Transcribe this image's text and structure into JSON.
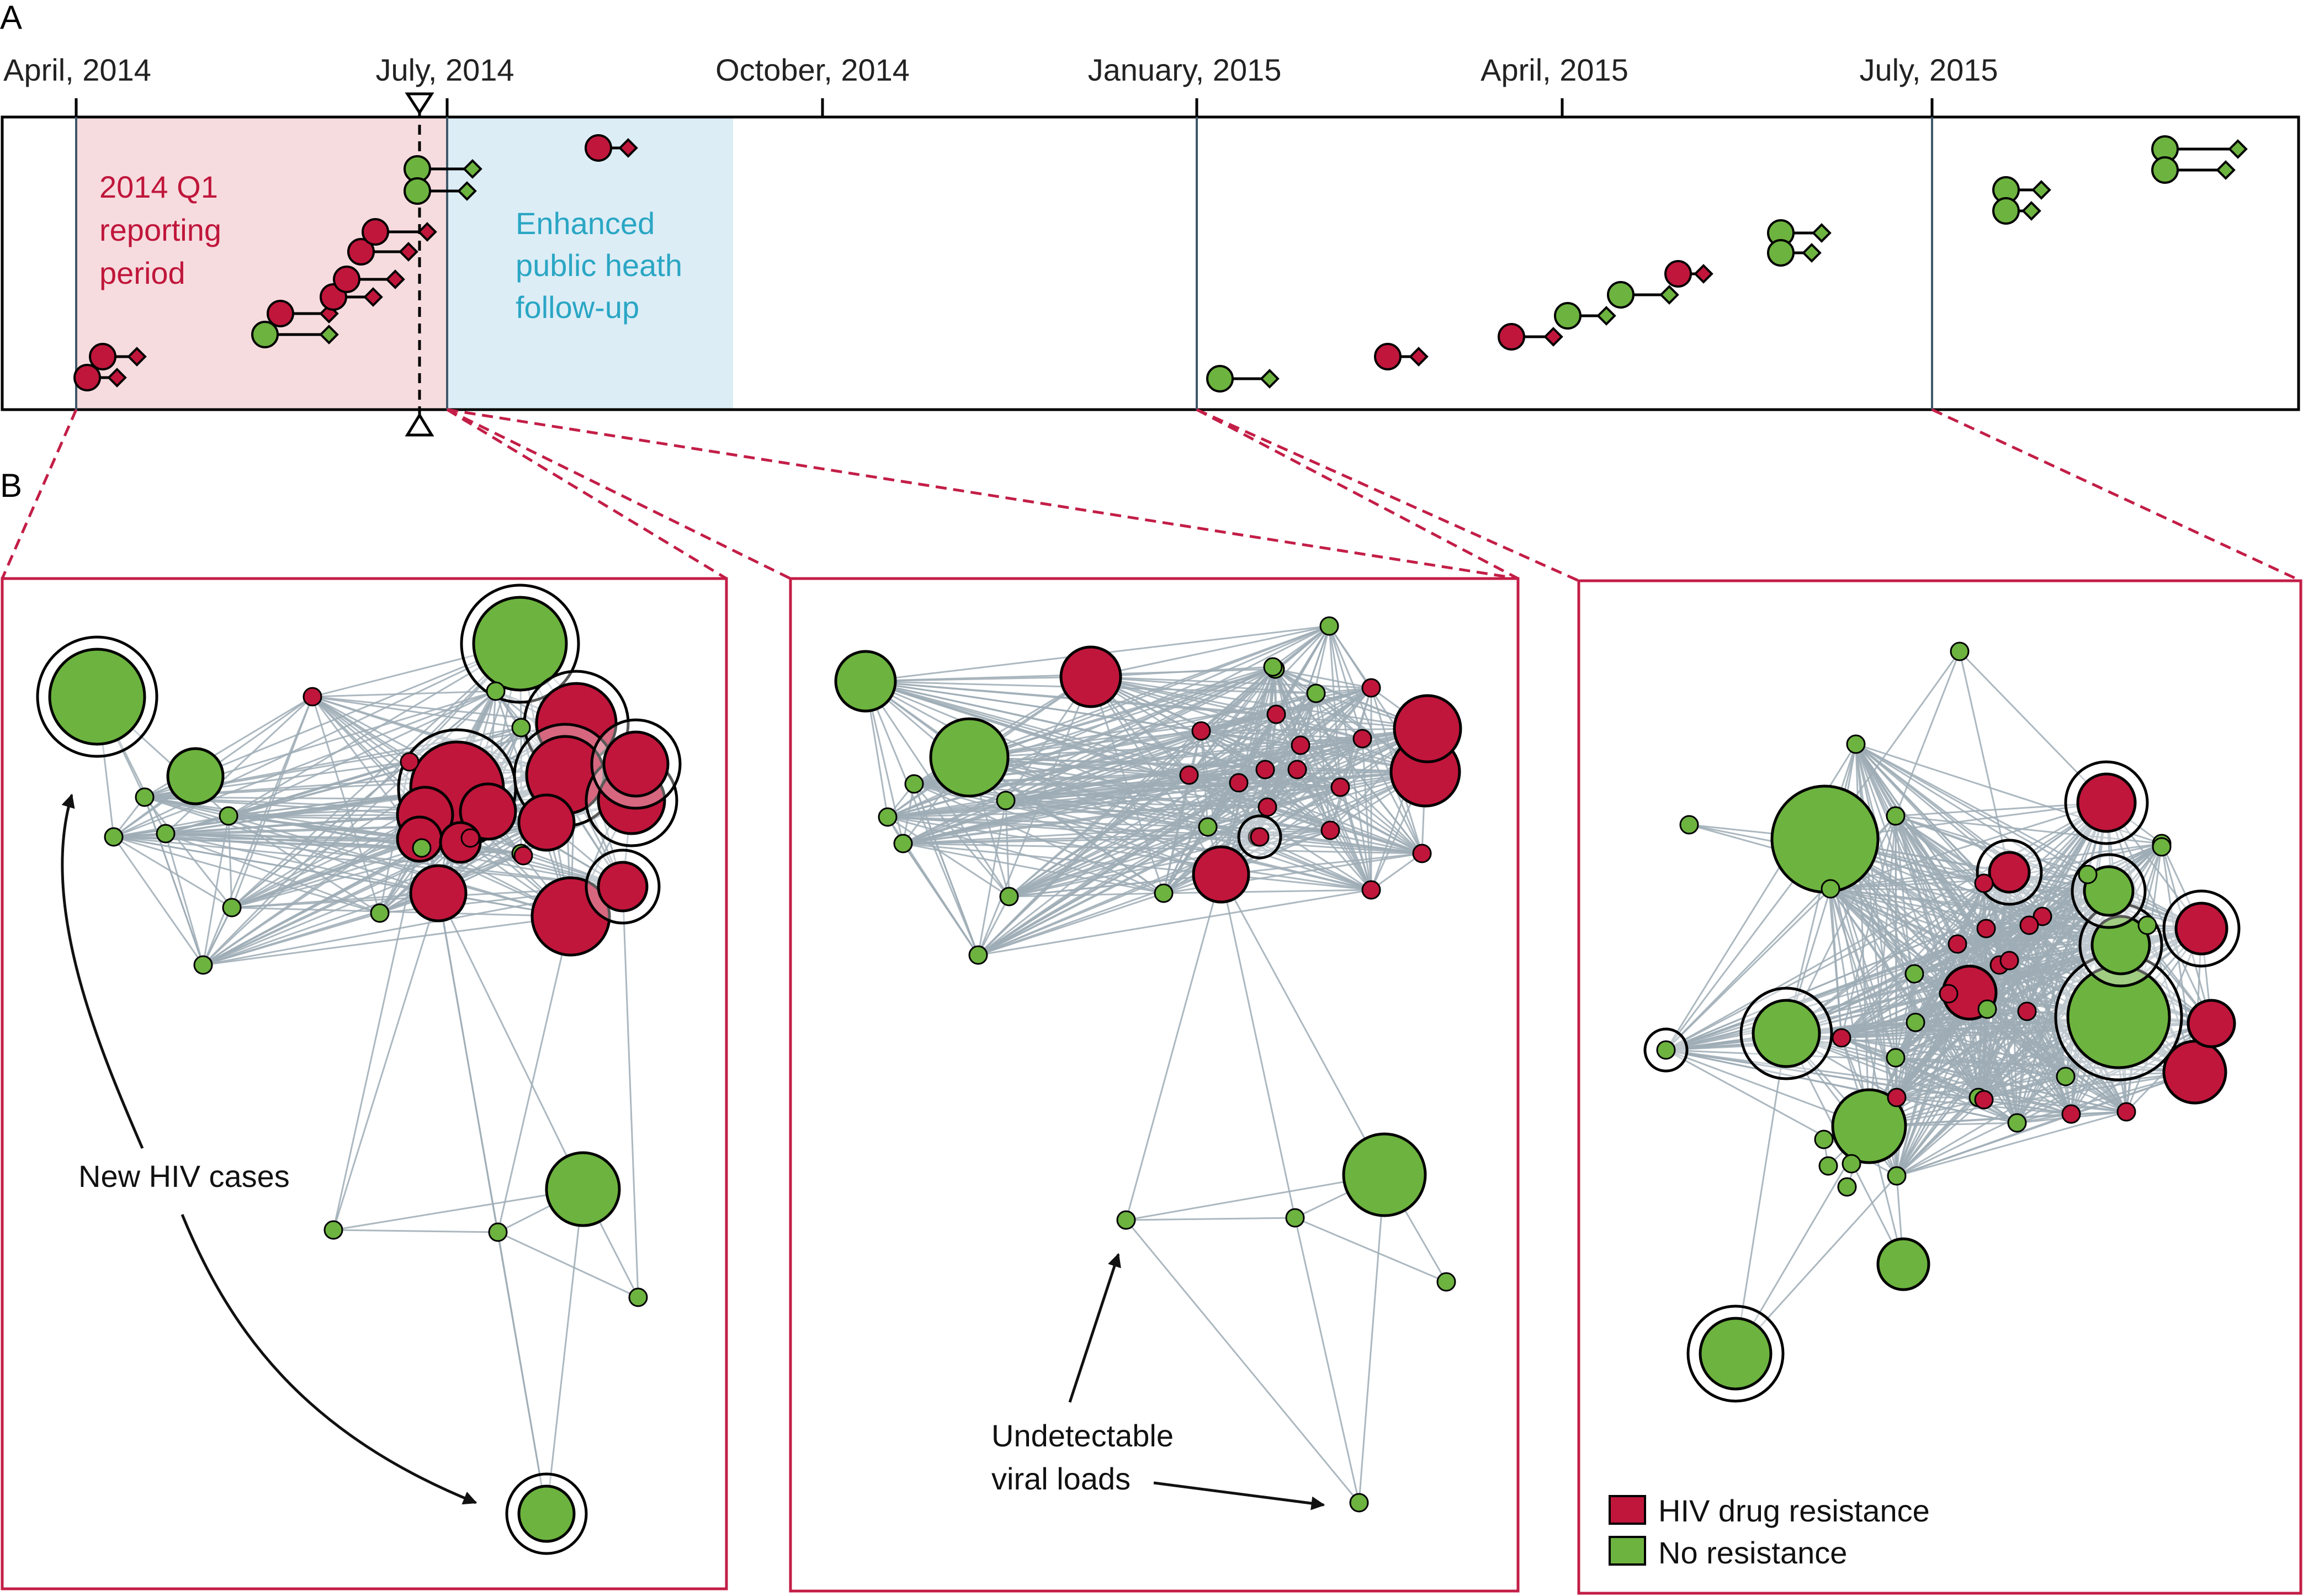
{
  "panels": {
    "a_label": "A",
    "b_label": "B"
  },
  "timeline": {
    "ticks": [
      "April, 2014",
      "July, 2014",
      "October, 2014",
      "January, 2015",
      "April, 2015",
      "July, 2015"
    ],
    "q1_period_label": [
      "2014 Q1",
      "reporting",
      "period"
    ],
    "followup_label": [
      "Enhanced",
      "public heath",
      "follow-up"
    ]
  },
  "annotations": {
    "new_cases": "New HIV cases",
    "undetectable": [
      "Undetectable",
      "viral loads"
    ]
  },
  "legend": {
    "resistance": "HIV drug resistance",
    "no_resistance": "No resistance"
  },
  "colors": {
    "resistance": "#c0163b",
    "no_resistance": "#6db33f",
    "q1_shade": "#f6dcdf",
    "followup_shade": "#dcedf6",
    "frame": "#c31e47",
    "edge": "#9eacb5",
    "q1_text": "#c0163b",
    "followup_text": "#2aa6c4"
  }
}
